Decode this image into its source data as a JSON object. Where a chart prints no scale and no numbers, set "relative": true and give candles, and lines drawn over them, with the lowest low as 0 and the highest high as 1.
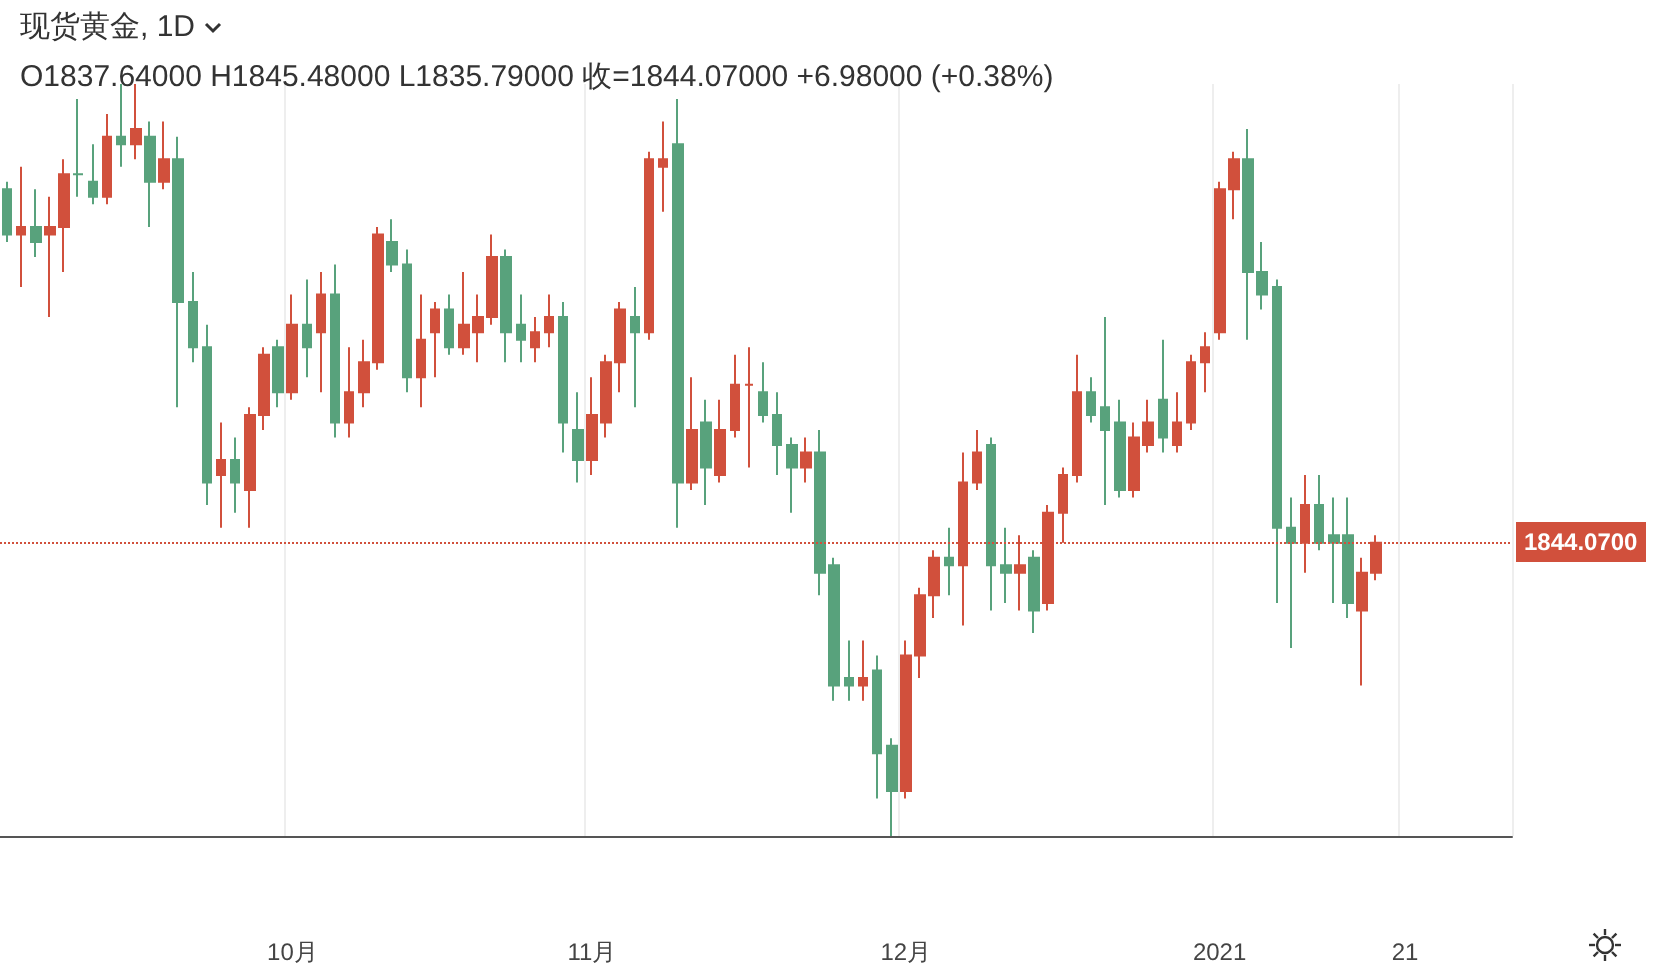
{
  "chart_data": {
    "type": "candlestick",
    "title": "现货黄金, 1D",
    "annotations": [
      "O1837.64000 H1845.48000 L1835.79000 收=1844.07000 +6.98000 (+0.38%)",
      "1844.0700"
    ],
    "relative": true,
    "grid": "x",
    "categories": [
      null,
      null,
      null,
      null,
      null,
      null,
      null,
      null,
      null,
      null,
      null,
      null,
      null,
      null,
      null,
      null,
      null,
      null,
      null,
      null,
      "10月",
      null,
      null,
      null,
      null,
      null,
      null,
      null,
      null,
      null,
      null,
      null,
      null,
      null,
      null,
      null,
      null,
      null,
      null,
      null,
      null,
      "11月",
      null,
      null,
      null,
      null,
      null,
      null,
      null,
      null,
      null,
      null,
      null,
      null,
      null,
      null,
      null,
      null,
      null,
      null,
      null,
      null,
      null,
      "12月",
      null,
      null,
      null,
      null,
      null,
      null,
      null,
      null,
      null,
      null,
      null,
      null,
      null,
      null,
      null,
      null,
      null,
      null,
      null,
      null,
      null,
      "2021",
      null,
      null,
      null,
      null,
      null,
      null,
      null,
      null,
      null,
      null,
      null,
      null,
      "21",
      null,
      null,
      null,
      null,
      null,
      null,
      null
    ],
    "ohlc": [
      [
        0.86,
        0.87,
        0.79,
        0.8
      ],
      [
        0.8,
        0.89,
        0.73,
        0.81
      ],
      [
        0.81,
        0.86,
        0.77,
        0.79
      ],
      [
        0.8,
        0.85,
        0.69,
        0.81
      ],
      [
        0.81,
        0.9,
        0.75,
        0.88
      ],
      [
        0.88,
        0.98,
        0.85,
        0.88
      ],
      [
        0.87,
        0.92,
        0.84,
        0.85
      ],
      [
        0.85,
        0.96,
        0.84,
        0.93
      ],
      [
        0.93,
        1,
        0.89,
        0.92
      ],
      [
        0.92,
        1,
        0.9,
        0.94
      ],
      [
        0.93,
        0.95,
        0.81,
        0.87
      ],
      [
        0.87,
        0.95,
        0.86,
        0.9
      ],
      [
        0.9,
        0.93,
        0.57,
        0.71
      ],
      [
        0.71,
        0.75,
        0.63,
        0.65
      ],
      [
        0.65,
        0.68,
        0.44,
        0.47
      ],
      [
        0.48,
        0.55,
        0.41,
        0.5
      ],
      [
        0.5,
        0.53,
        0.43,
        0.47
      ],
      [
        0.46,
        0.57,
        0.41,
        0.56
      ],
      [
        0.56,
        0.65,
        0.54,
        0.64
      ],
      [
        0.65,
        0.66,
        0.57,
        0.59
      ],
      [
        0.59,
        0.72,
        0.58,
        0.68
      ],
      [
        0.68,
        0.74,
        0.61,
        0.65
      ],
      [
        0.67,
        0.75,
        0.59,
        0.72
      ],
      [
        0.72,
        0.76,
        0.53,
        0.55
      ],
      [
        0.55,
        0.65,
        0.53,
        0.59
      ],
      [
        0.59,
        0.66,
        0.57,
        0.63
      ],
      [
        0.63,
        0.81,
        0.62,
        0.8
      ],
      [
        0.79,
        0.82,
        0.75,
        0.76
      ],
      [
        0.76,
        0.78,
        0.59,
        0.61
      ],
      [
        0.61,
        0.72,
        0.57,
        0.66
      ],
      [
        0.67,
        0.71,
        0.61,
        0.7
      ],
      [
        0.7,
        0.72,
        0.64,
        0.65
      ],
      [
        0.65,
        0.75,
        0.64,
        0.68
      ],
      [
        0.67,
        0.72,
        0.63,
        0.69
      ],
      [
        0.69,
        0.8,
        0.68,
        0.77
      ],
      [
        0.77,
        0.78,
        0.63,
        0.67
      ],
      [
        0.68,
        0.72,
        0.63,
        0.66
      ],
      [
        0.65,
        0.69,
        0.63,
        0.67
      ],
      [
        0.67,
        0.72,
        0.65,
        0.69
      ],
      [
        0.69,
        0.71,
        0.51,
        0.55
      ],
      [
        0.54,
        0.59,
        0.47,
        0.5
      ],
      [
        0.5,
        0.61,
        0.48,
        0.56
      ],
      [
        0.55,
        0.64,
        0.53,
        0.63
      ],
      [
        0.63,
        0.71,
        0.59,
        0.7
      ],
      [
        0.69,
        0.73,
        0.57,
        0.67
      ],
      [
        0.67,
        0.91,
        0.66,
        0.9
      ],
      [
        0.89,
        0.95,
        0.83,
        0.9
      ],
      [
        0.92,
        0.98,
        0.41,
        0.47
      ],
      [
        0.47,
        0.61,
        0.46,
        0.54
      ],
      [
        0.55,
        0.58,
        0.44,
        0.49
      ],
      [
        0.48,
        0.58,
        0.47,
        0.54
      ],
      [
        0.54,
        0.64,
        0.53,
        0.6
      ],
      [
        0.6,
        0.65,
        0.49,
        0.6
      ],
      [
        0.59,
        0.63,
        0.55,
        0.56
      ],
      [
        0.56,
        0.59,
        0.48,
        0.52
      ],
      [
        0.52,
        0.53,
        0.43,
        0.49
      ],
      [
        0.49,
        0.53,
        0.47,
        0.51
      ],
      [
        0.51,
        0.54,
        0.32,
        0.35
      ],
      [
        0.36,
        0.37,
        0.18,
        0.2
      ],
      [
        0.21,
        0.26,
        0.18,
        0.2
      ],
      [
        0.2,
        0.26,
        0.18,
        0.21
      ],
      [
        0.22,
        0.24,
        0.05,
        0.11
      ],
      [
        0.12,
        0.13,
        0,
        0.06
      ],
      [
        0.06,
        0.26,
        0.05,
        0.24
      ],
      [
        0.24,
        0.33,
        0.21,
        0.32
      ],
      [
        0.32,
        0.38,
        0.29,
        0.37
      ],
      [
        0.37,
        0.41,
        0.32,
        0.36
      ],
      [
        0.36,
        0.51,
        0.28,
        0.47
      ],
      [
        0.47,
        0.54,
        0.46,
        0.51
      ],
      [
        0.52,
        0.53,
        0.3,
        0.36
      ],
      [
        0.36,
        0.41,
        0.31,
        0.35
      ],
      [
        0.35,
        0.4,
        0.3,
        0.36
      ],
      [
        0.37,
        0.38,
        0.27,
        0.3
      ],
      [
        0.31,
        0.44,
        0.3,
        0.43
      ],
      [
        0.43,
        0.49,
        0.39,
        0.48
      ],
      [
        0.48,
        0.64,
        0.47,
        0.59
      ],
      [
        0.59,
        0.61,
        0.55,
        0.56
      ],
      [
        0.57,
        0.69,
        0.44,
        0.54
      ],
      [
        0.55,
        0.58,
        0.45,
        0.46
      ],
      [
        0.46,
        0.55,
        0.45,
        0.53
      ],
      [
        0.52,
        0.58,
        0.51,
        0.55
      ],
      [
        0.58,
        0.66,
        0.51,
        0.53
      ],
      [
        0.52,
        0.59,
        0.51,
        0.55
      ],
      [
        0.55,
        0.64,
        0.54,
        0.63
      ],
      [
        0.63,
        0.67,
        0.59,
        0.65
      ],
      [
        0.67,
        0.87,
        0.66,
        0.86
      ],
      [
        0.86,
        0.91,
        0.82,
        0.9
      ],
      [
        0.9,
        0.94,
        0.66,
        0.75
      ],
      [
        0.75,
        0.79,
        0.7,
        0.72
      ],
      [
        0.73,
        0.74,
        0.31,
        0.41
      ],
      [
        0.41,
        0.45,
        0.25,
        0.39
      ],
      [
        0.39,
        0.48,
        0.35,
        0.44
      ],
      [
        0.44,
        0.48,
        0.38,
        0.39
      ],
      [
        0.4,
        0.45,
        0.31,
        0.39
      ],
      [
        0.4,
        0.45,
        0.29,
        0.31
      ],
      [
        0.3,
        0.37,
        0.2,
        0.35
      ],
      [
        0.35,
        0.4,
        0.34,
        0.39
      ],
      null,
      null,
      null,
      null,
      null,
      null,
      null,
      null,
      null
    ],
    "colors": [
      "#58a27c",
      "#d1503c",
      "#58a27c",
      "#d1503c",
      "#d1503c",
      "#58a27c",
      "#58a27c",
      "#d1503c",
      "#58a27c",
      "#d1503c",
      "#58a27c",
      "#d1503c",
      "#58a27c",
      "#58a27c",
      "#58a27c",
      "#d1503c",
      "#58a27c",
      "#d1503c",
      "#d1503c",
      "#58a27c",
      "#d1503c",
      "#58a27c",
      "#d1503c",
      "#58a27c",
      "#d1503c",
      "#d1503c",
      "#d1503c",
      "#58a27c",
      "#58a27c",
      "#d1503c",
      "#d1503c",
      "#58a27c",
      "#d1503c",
      "#d1503c",
      "#d1503c",
      "#58a27c",
      "#58a27c",
      "#d1503c",
      "#d1503c",
      "#58a27c",
      "#58a27c",
      "#d1503c",
      "#d1503c",
      "#d1503c",
      "#58a27c",
      "#d1503c",
      "#d1503c",
      "#58a27c",
      "#d1503c",
      "#58a27c",
      "#d1503c",
      "#d1503c",
      "#d1503c",
      "#58a27c",
      "#58a27c",
      "#58a27c",
      "#d1503c",
      "#58a27c",
      "#58a27c",
      "#58a27c",
      "#d1503c",
      "#58a27c",
      "#58a27c",
      "#d1503c",
      "#d1503c",
      "#d1503c",
      "#58a27c",
      "#d1503c",
      "#d1503c",
      "#58a27c",
      "#58a27c",
      "#d1503c",
      "#58a27c",
      "#d1503c",
      "#d1503c",
      "#d1503c",
      "#58a27c",
      "#58a27c",
      "#58a27c",
      "#d1503c",
      "#d1503c",
      "#58a27c",
      "#d1503c",
      "#d1503c",
      "#d1503c",
      "#d1503c",
      "#d1503c",
      "#58a27c",
      "#58a27c",
      "#58a27c",
      "#58a27c",
      "#d1503c",
      "#58a27c",
      "#58a27c",
      "#58a27c",
      "#d1503c",
      "#d1503c",
      null,
      null,
      null,
      null,
      null,
      null,
      null,
      null,
      null
    ],
    "ref_lines": [
      {
        "axis": "y",
        "value": 0.39,
        "color": "#d1503c",
        "line_style": "dotted"
      }
    ]
  }
}
